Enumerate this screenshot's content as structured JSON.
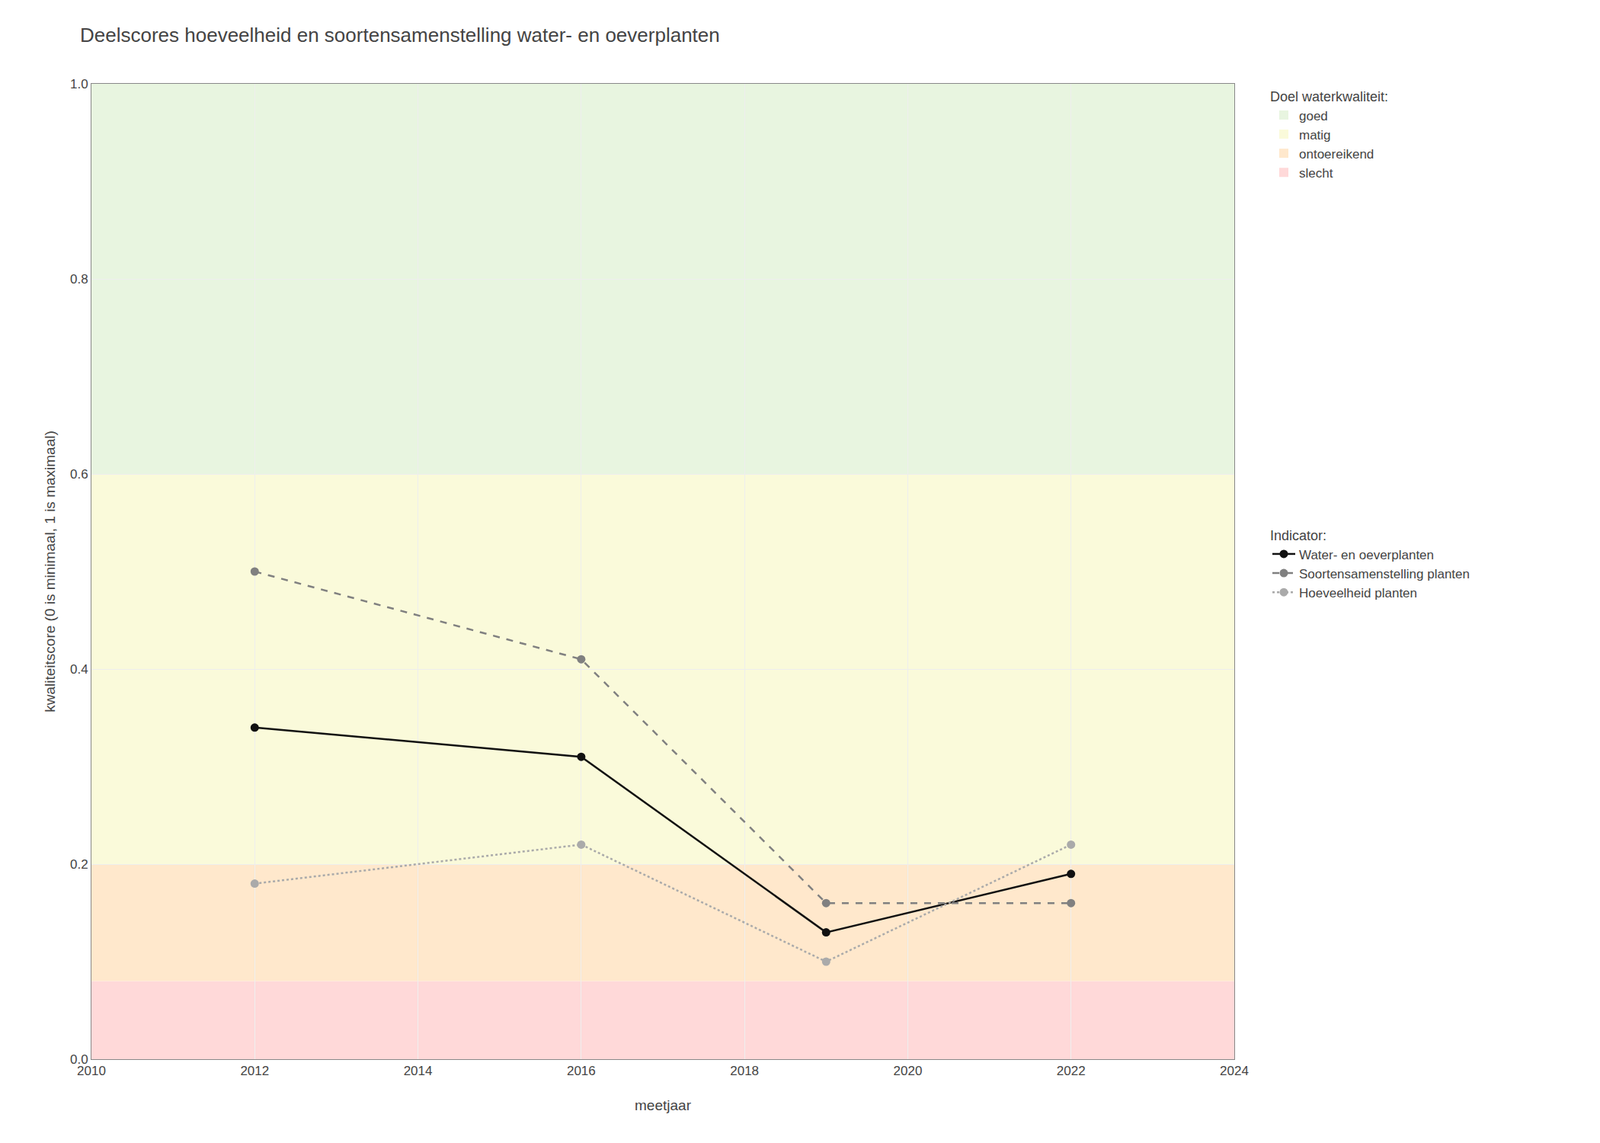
{
  "chart_data": {
    "type": "line",
    "title": "Deelscores hoeveelheid en soortensamenstelling water- en oeverplanten",
    "x_label": "meetjaar",
    "y_label": "kwaliteitscore (0 is minimaal, 1 is maximaal)",
    "xlim": [
      2010,
      2024
    ],
    "ylim": [
      0,
      1
    ],
    "xticks": [
      2010,
      2012,
      2014,
      2016,
      2018,
      2020,
      2022,
      2024
    ],
    "yticks": [
      {
        "value": 0,
        "label": "0.0"
      },
      0.2,
      0.4,
      0.6,
      0.8,
      {
        "value": 1,
        "label": "1.0"
      }
    ],
    "grid": true,
    "bands_title": "Doel waterkwaliteit:",
    "bands": [
      {
        "name": "slecht",
        "ymin": 0,
        "ymax": 0.08,
        "color": "#FFD9D9"
      },
      {
        "name": "ontoereikend",
        "ymin": 0.08,
        "ymax": 0.2,
        "color": "#FFE8CC"
      },
      {
        "name": "matig",
        "ymin": 0.2,
        "ymax": 0.6,
        "color": "#FAFADA"
      },
      {
        "name": "goed",
        "ymin": 0.6,
        "ymax": 1,
        "color": "#E8F5E0"
      }
    ],
    "series_title": "Indicator:",
    "x": [
      2012,
      2016,
      2019,
      2022
    ],
    "series": [
      {
        "name": "Water- en oeverplanten",
        "values": [
          0.34,
          0.31,
          0.13,
          0.19
        ],
        "color": "#111111",
        "line_style": "solid",
        "marker": "circle"
      },
      {
        "name": "Soortensamenstelling planten",
        "values": [
          0.5,
          0.41,
          0.16,
          0.16
        ],
        "color": "#808080",
        "line_style": "dashed",
        "marker": "circle"
      },
      {
        "name": "Hoeveelheid planten",
        "values": [
          0.18,
          0.22,
          0.1,
          0.22
        ],
        "color": "#aaaaaa",
        "line_style": "dotted",
        "marker": "circle"
      }
    ]
  }
}
